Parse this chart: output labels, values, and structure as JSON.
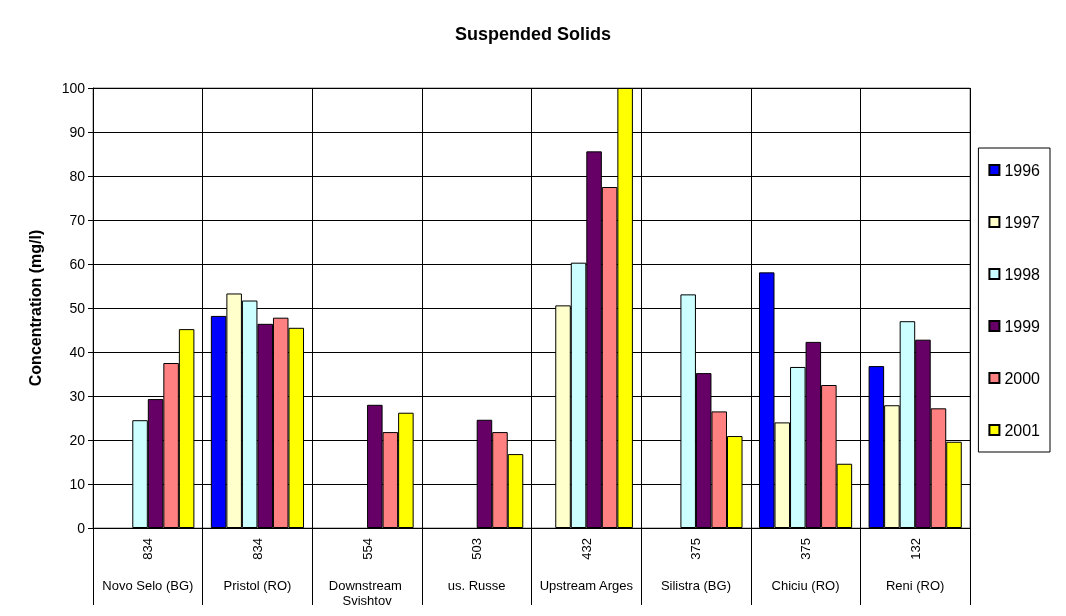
{
  "chart_data": {
    "type": "bar",
    "title": "Suspended Solids",
    "ylabel": "Concentration (mg/l)",
    "categories": [
      "Novo Selo (BG)",
      "Pristol (RO)",
      "Downstream Svishtov",
      "us. Russe",
      "Upstream Arges",
      "Silistra (BG)",
      "Chiciu (RO)",
      "Reni (RO)"
    ],
    "annotations": [
      "834",
      "834",
      "554",
      "503",
      "432",
      "375",
      "375",
      "132"
    ],
    "series": [
      {
        "name": "1996",
        "color": "#0000ff",
        "values": [
          null,
          48.2,
          null,
          null,
          null,
          null,
          58.1,
          36.8
        ]
      },
      {
        "name": "1997",
        "color": "#ffffcc",
        "values": [
          null,
          53.3,
          null,
          null,
          50.6,
          null,
          24.0,
          27.9
        ]
      },
      {
        "name": "1998",
        "color": "#ccffff",
        "values": [
          24.5,
          51.7,
          null,
          null,
          60.3,
          53.1,
          36.6,
          47.0
        ]
      },
      {
        "name": "1999",
        "color": "#660066",
        "values": [
          29.3,
          46.4,
          28.0,
          24.6,
          85.6,
          35.2,
          42.3,
          42.8
        ]
      },
      {
        "name": "2000",
        "color": "#ff8080",
        "values": [
          37.5,
          47.8,
          21.8,
          21.8,
          77.5,
          26.5,
          32.5,
          27.2
        ]
      },
      {
        "name": "2001",
        "color": "#ffff00",
        "values": [
          45.2,
          45.5,
          26.2,
          16.8,
          100,
          20.9,
          14.6,
          19.6
        ]
      }
    ],
    "ylim": [
      0,
      100
    ],
    "yticks": [
      0,
      10,
      20,
      30,
      40,
      50,
      60,
      70,
      80,
      90,
      100
    ],
    "grid": true,
    "legend": "right"
  }
}
